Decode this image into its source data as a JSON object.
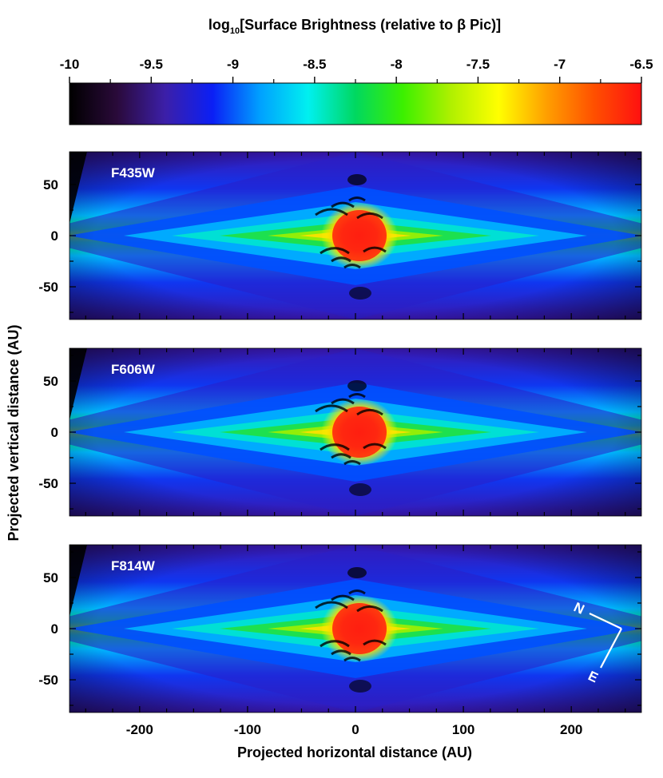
{
  "chart_data": {
    "type": "heatmap",
    "colorbar": {
      "title_prefix": "log",
      "title_sub": "10",
      "title_suffix": "[Surface Brightness (relative to β Pic)]",
      "range": [
        -10,
        -6.5
      ],
      "ticks": [
        "-10",
        "-9.5",
        "-9",
        "-8.5",
        "-8",
        "-7.5",
        "-7",
        "-6.5"
      ],
      "colormap": [
        "#000000",
        "#2a0a3a",
        "#3c1fa8",
        "#0b1ff5",
        "#00a0ff",
        "#00f0f0",
        "#00d860",
        "#3cf000",
        "#b0f000",
        "#ffff00",
        "#ffa000",
        "#ff5000",
        "#ff1010"
      ]
    },
    "x_axis": {
      "label": "Projected horizontal distance (AU)",
      "range": [
        -265,
        265
      ],
      "ticks": [
        -200,
        -100,
        0,
        100,
        200
      ],
      "tick_labels": [
        "-200",
        "-100",
        "0",
        "100",
        "200"
      ]
    },
    "y_axis": {
      "label": "Projected vertical distance (AU)",
      "range": [
        -82,
        82
      ],
      "ticks": [
        -50,
        0,
        50
      ],
      "tick_labels": [
        "-50",
        "0",
        "50"
      ]
    },
    "panels": [
      {
        "label": "F435W"
      },
      {
        "label": "F606W"
      },
      {
        "label": "F814W"
      }
    ],
    "compass": {
      "north": "N",
      "east": "E"
    }
  }
}
